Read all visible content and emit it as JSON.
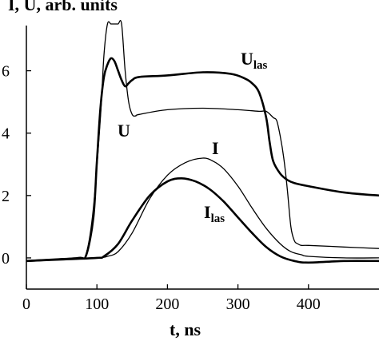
{
  "chart_data": {
    "type": "line",
    "title": "",
    "xlabel": "t, ns",
    "ylabel": "I, U, arb. units",
    "xlim": [
      0,
      500
    ],
    "ylim": [
      -1.0,
      7.5
    ],
    "x_ticks": [
      "0",
      "100",
      "200",
      "300",
      "400"
    ],
    "x_tick_values": [
      0,
      100,
      200,
      300,
      400
    ],
    "y_ticks": [
      "0",
      "2",
      "4",
      "6"
    ],
    "y_tick_values": [
      0,
      2,
      4,
      6
    ],
    "grid": false,
    "series": [
      {
        "name": "U",
        "label_main": "U",
        "label_sub": "",
        "line_width": 1.3,
        "x": [
          0,
          40,
          75,
          85,
          95,
          105,
          110,
          115,
          120,
          125,
          130,
          135,
          140,
          145,
          150,
          155,
          160,
          200,
          250,
          300,
          330,
          340,
          350,
          355,
          360,
          365,
          370,
          375,
          380,
          385,
          390,
          400,
          450,
          500
        ],
        "y": [
          -0.1,
          -0.05,
          0.0,
          0.15,
          1.6,
          4.5,
          6.5,
          7.5,
          7.5,
          7.5,
          7.5,
          7.5,
          6.0,
          5.0,
          4.6,
          4.55,
          4.6,
          4.75,
          4.8,
          4.75,
          4.7,
          4.7,
          4.5,
          4.4,
          3.9,
          3.2,
          2.2,
          1.0,
          0.55,
          0.45,
          0.4,
          0.4,
          0.35,
          0.3
        ]
      },
      {
        "name": "U_las",
        "label_main": "U",
        "label_sub": "las",
        "line_width": 2.6,
        "x": [
          0,
          40,
          75,
          85,
          95,
          100,
          105,
          110,
          115,
          120,
          125,
          130,
          135,
          140,
          145,
          150,
          160,
          200,
          250,
          290,
          310,
          320,
          330,
          340,
          345,
          350,
          360,
          370,
          380,
          400,
          450,
          500
        ],
        "y": [
          -0.1,
          -0.05,
          0.0,
          0.1,
          1.3,
          3.1,
          4.8,
          5.8,
          6.2,
          6.4,
          6.3,
          6.0,
          5.7,
          5.5,
          5.6,
          5.7,
          5.8,
          5.85,
          5.95,
          5.9,
          5.75,
          5.6,
          5.3,
          4.5,
          3.7,
          3.1,
          2.7,
          2.5,
          2.4,
          2.3,
          2.1,
          2.0
        ]
      },
      {
        "name": "I",
        "label_main": "I",
        "label_sub": "",
        "line_width": 1.3,
        "x": [
          0,
          50,
          100,
          115,
          130,
          150,
          175,
          200,
          225,
          250,
          265,
          280,
          300,
          320,
          340,
          360,
          375,
          390,
          400,
          450,
          500
        ],
        "y": [
          -0.1,
          -0.05,
          0.0,
          0.05,
          0.2,
          0.8,
          1.9,
          2.65,
          3.05,
          3.2,
          3.1,
          2.85,
          2.3,
          1.6,
          0.95,
          0.45,
          0.2,
          0.1,
          0.05,
          0.0,
          0.0
        ]
      },
      {
        "name": "I_las",
        "label_main": "I",
        "label_sub": "las",
        "line_width": 2.6,
        "x": [
          0,
          50,
          100,
          110,
          130,
          150,
          175,
          200,
          220,
          240,
          260,
          280,
          300,
          320,
          340,
          360,
          380,
          400,
          450,
          500
        ],
        "y": [
          -0.1,
          -0.05,
          0.0,
          0.05,
          0.45,
          1.2,
          2.0,
          2.45,
          2.55,
          2.45,
          2.2,
          1.8,
          1.3,
          0.8,
          0.35,
          0.05,
          -0.1,
          -0.15,
          -0.1,
          -0.1
        ]
      }
    ]
  }
}
